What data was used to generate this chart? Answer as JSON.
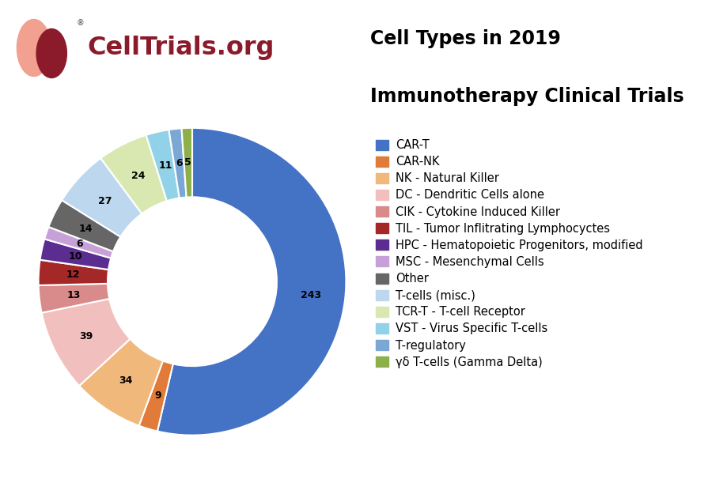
{
  "title_line1": "Cell Types in 2019",
  "title_line2": "Immunotherapy Clinical Trials",
  "values": [
    243,
    9,
    34,
    39,
    13,
    12,
    10,
    6,
    14,
    27,
    24,
    11,
    6,
    5
  ],
  "labels": [
    "CAR-T",
    "CAR-NK",
    "NK - Natural Killer",
    "DC - Dendritic Cells alone",
    "CIK - Cytokine Induced Killer",
    "TIL - Tumor Inflitrating Lymphocyctes",
    "HPC - Hematopoietic Progenitors, modified",
    "MSC - Mesenchymal Cells",
    "Other",
    "T-cells (misc.)",
    "TCR-T - T-cell Receptor",
    "VST - Virus Specific T-cells",
    "T-regulatory",
    "γδ T-cells (Gamma Delta)"
  ],
  "colors": [
    "#4472C4",
    "#E07B39",
    "#F0B87A",
    "#F2BFBF",
    "#D98A8A",
    "#A52828",
    "#5C2D91",
    "#C8A0D8",
    "#666666",
    "#BDD7EE",
    "#D9E8B0",
    "#92D2E8",
    "#7BA7D4",
    "#8DB04A"
  ],
  "background_color": "#ffffff",
  "donut_width": 0.45,
  "logo_color_light": "#F2A090",
  "logo_color_dark": "#8B1A2A",
  "title_fontsize": 17,
  "legend_fontsize": 10.5,
  "label_fontsize": 9
}
